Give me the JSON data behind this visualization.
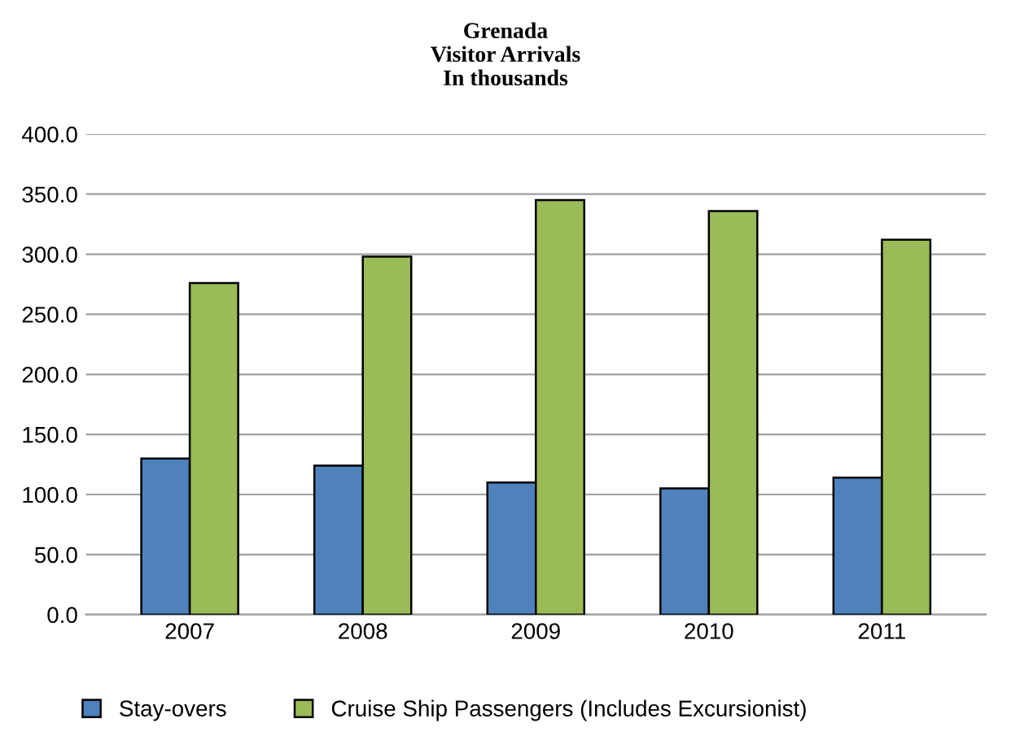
{
  "chart_data": {
    "type": "bar",
    "title": "Grenada\nVisitor Arrivals\nIn thousands",
    "categories": [
      "2007",
      "2008",
      "2009",
      "2010",
      "2011"
    ],
    "series": [
      {
        "name": "Stay-overs",
        "color": "#4f81bd",
        "values": [
          130,
          124,
          110,
          105,
          114
        ]
      },
      {
        "name": "Cruise Ship Passengers (Includes Excursionist)",
        "color": "#9bbb59",
        "values": [
          276,
          298,
          345,
          336,
          312
        ]
      }
    ],
    "ylim": [
      0,
      400
    ],
    "yticks": [
      {
        "value": 0,
        "label": "0.0"
      },
      {
        "value": 50,
        "label": "50.0"
      },
      {
        "value": 100,
        "label": "100.0"
      },
      {
        "value": 150,
        "label": "150.0"
      },
      {
        "value": 200,
        "label": "200.0"
      },
      {
        "value": 250,
        "label": "250.0"
      },
      {
        "value": 300,
        "label": "300.0"
      },
      {
        "value": 350,
        "label": "350.0"
      },
      {
        "value": 400,
        "label": "400.0"
      }
    ],
    "grid": "y",
    "legend": "bottom"
  }
}
